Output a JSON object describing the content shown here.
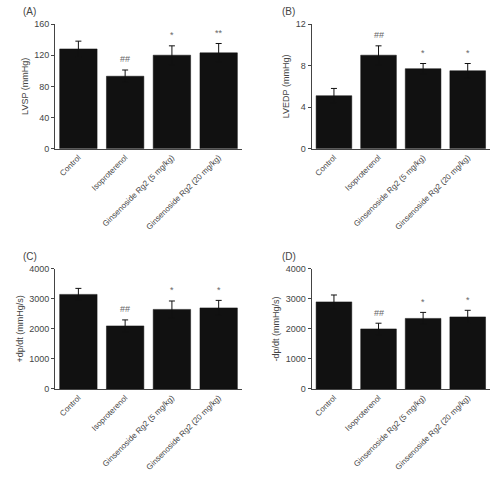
{
  "chart_data": [
    {
      "type": "bar",
      "title": "(A)",
      "ylabel": "LVSP (mmHg)",
      "categories": [
        "Control",
        "Isoproterenol",
        "Ginsenoside Rg2 (5 mg/kg)",
        "Ginsenoside Rg2 (20 mg/kg)"
      ],
      "values": [
        128,
        93,
        120,
        123
      ],
      "errors": [
        10,
        8,
        12,
        12
      ],
      "annotations": [
        null,
        "##",
        "*",
        "**"
      ],
      "ylim": [
        0,
        160
      ],
      "yticks": [
        0,
        40,
        80,
        120,
        160
      ],
      "color": "#111111",
      "grid": false
    },
    {
      "type": "bar",
      "title": "(B)",
      "ylabel": "LVEDP (mmHg)",
      "categories": [
        "Control",
        "Isoproterenol",
        "Ginsenoside Rg2 (5 mg/kg)",
        "Ginsenoside Rg2 (20 mg/kg)"
      ],
      "values": [
        5.1,
        9.0,
        7.7,
        7.5
      ],
      "errors": [
        0.7,
        0.9,
        0.5,
        0.7
      ],
      "annotations": [
        null,
        "##",
        "*",
        "*"
      ],
      "ylim": [
        0,
        12
      ],
      "yticks": [
        0,
        4,
        8,
        12
      ],
      "color": "#111111",
      "grid": false
    },
    {
      "type": "bar",
      "title": "(C)",
      "ylabel": "+dp/dt (mmHg/s)",
      "categories": [
        "Control",
        "Isoproterenol",
        "Ginsenoside Rg2 (5 mg/kg)",
        "Ginsenoside Rg2 (20 mg/kg)"
      ],
      "values": [
        3150,
        2100,
        2650,
        2700
      ],
      "errors": [
        200,
        200,
        280,
        250
      ],
      "annotations": [
        null,
        "##",
        "*",
        "*"
      ],
      "ylim": [
        0,
        4000
      ],
      "yticks": [
        0,
        1000,
        2000,
        3000,
        4000
      ],
      "color": "#111111",
      "grid": false
    },
    {
      "type": "bar",
      "title": "(D)",
      "ylabel": "-dp/dt (mmHg/s)",
      "categories": [
        "Control",
        "Isoproterenol",
        "Ginsenoside Rg2 (5 mg/kg)",
        "Ginsenoside Rg2 (20 mg/kg)"
      ],
      "values": [
        2900,
        2000,
        2350,
        2400
      ],
      "errors": [
        230,
        190,
        200,
        220
      ],
      "annotations": [
        null,
        "##",
        "*",
        "*"
      ],
      "ylim": [
        0,
        4000
      ],
      "yticks": [
        0,
        1000,
        2000,
        3000,
        4000
      ],
      "color": "#111111",
      "grid": false
    }
  ]
}
